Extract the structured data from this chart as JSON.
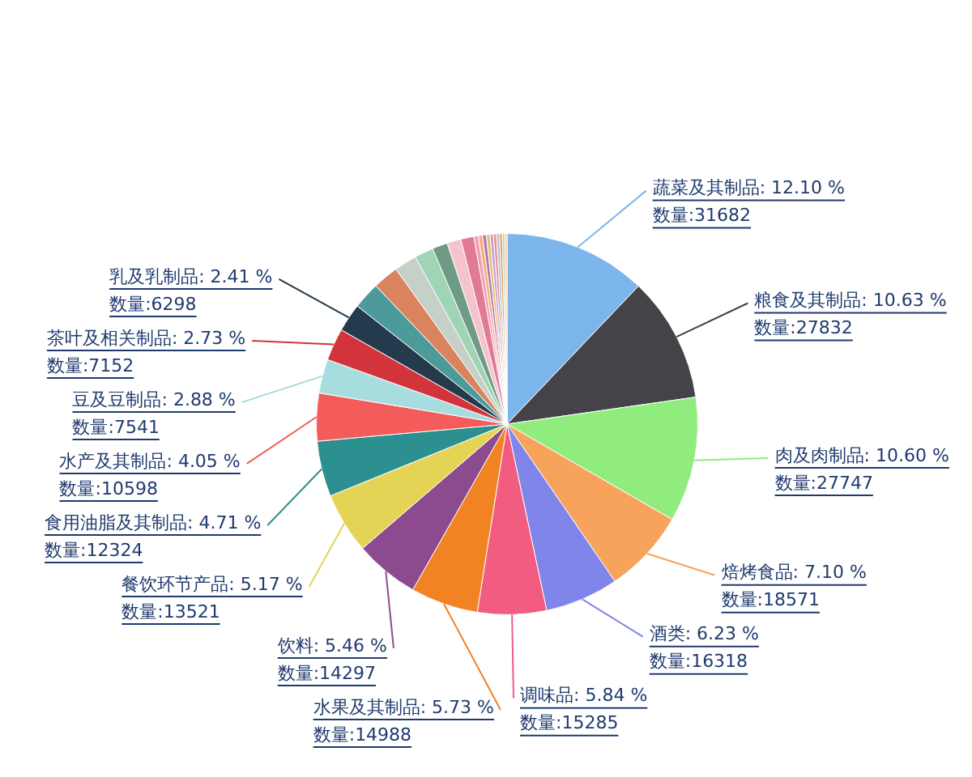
{
  "chart_data": {
    "type": "pie",
    "categories": [
      "蔬菜及其制品",
      "粮食及其制品",
      "肉及肉制品",
      "焙烤食品",
      "酒类",
      "调味品",
      "水果及其制品",
      "饮料",
      "餐饮环节产品",
      "食用油脂及其制品",
      "水产及其制品",
      "豆及豆制品",
      "茶叶及相关制品",
      "乳及乳制品",
      null,
      null,
      null,
      null,
      null,
      null,
      null,
      null,
      null,
      null,
      null,
      null,
      null,
      null,
      null,
      null,
      null
    ],
    "values": [
      31682,
      27832,
      27747,
      18571,
      16318,
      15285,
      14988,
      14297,
      13521,
      12324,
      10598,
      7541,
      7152,
      6298,
      6000,
      5700,
      5000,
      4200,
      3400,
      3100,
      2900,
      1000,
      900,
      850,
      800,
      750,
      700,
      650,
      600,
      550,
      500
    ],
    "value_labels": [
      "12.10 %\n数量:31682",
      "10.63 %\n数量:27832",
      "10.60 %\n数量:27747",
      "7.10 %\n数量:18571",
      "6.23 %\n数量:16318",
      "5.84 %\n数量:15285",
      "5.73 %\n数量:14988",
      "5.46 %\n数量:14297",
      "5.17 %\n数量:13521",
      "4.71 %\n数量:12324",
      "4.05 %\n数量:10598",
      "2.88 %\n数量:7541",
      "2.73 %\n数量:7152",
      "2.41 %\n数量:6298",
      null,
      null,
      null,
      null,
      null,
      null,
      null,
      null,
      null,
      null,
      null,
      null,
      null,
      null,
      null,
      null,
      null
    ],
    "colors": [
      "#7cb5ec",
      "#434348",
      "#90ed7d",
      "#f7a35c",
      "#8085e9",
      "#f15c80",
      "#f28322",
      "#8d4b8f",
      "#e4d354",
      "#2b908f",
      "#f45b5b",
      "#a8dde0",
      "#d1343a",
      "#243b4d",
      "#4d9a9b",
      "#d9845f",
      "#c7cfc9",
      "#9fd5b5",
      "#6f9b86",
      "#f4c3cc",
      "#e07b93",
      "#f0a0b8",
      "#f5b07a",
      "#b07ab8",
      "#e8c070",
      "#c8a0d8",
      "#f09090",
      "#a0c8e0",
      "#e0a060",
      "#d0d0a0",
      "#f8c8a0"
    ],
    "legend": false
  }
}
